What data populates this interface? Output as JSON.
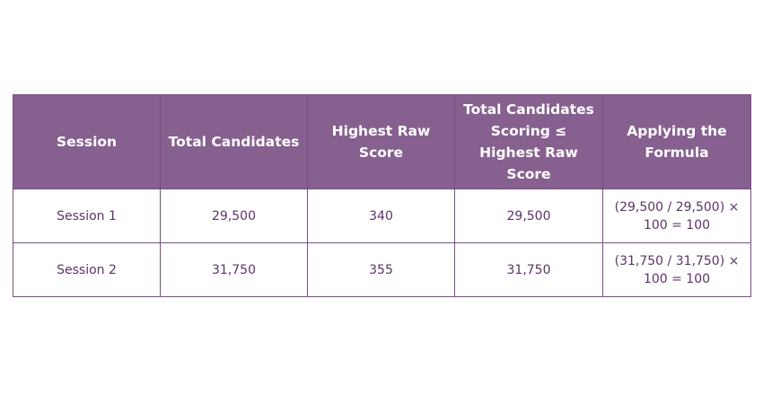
{
  "table": {
    "headers": [
      "Session",
      "Total Candidates",
      "Highest Raw Score",
      "Total Candidates Scoring ≤ Highest Raw Score",
      "Applying the Formula"
    ],
    "rows": [
      [
        "Session 1",
        "29,500",
        "340",
        "29,500",
        "(29,500 / 29,500) × 100 = 100"
      ],
      [
        "Session 2",
        "31,750",
        "355",
        "31,750",
        "(31,750 / 31,750) × 100 = 100"
      ]
    ]
  }
}
